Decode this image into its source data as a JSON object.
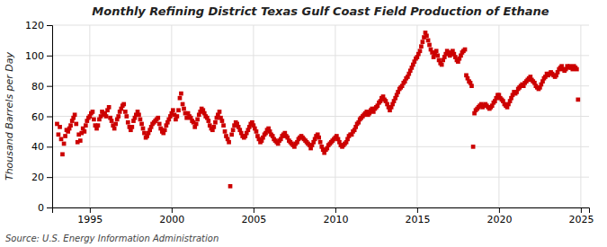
{
  "chart_data": {
    "type": "scatter",
    "title": "Monthly Refining District Texas Gulf Coast Field Production of Ethane",
    "ylabel": "Thousand Barrels per Day",
    "source": "Source: U.S. Energy Information Administration",
    "color": "#cc0000",
    "marker": "square",
    "grid": true,
    "xlim": [
      1992.7,
      2025.5
    ],
    "ylim": [
      0,
      120
    ],
    "xticks": [
      1995,
      2000,
      2005,
      2010,
      2015,
      2020,
      2025
    ],
    "yticks": [
      0,
      20,
      40,
      60,
      80,
      100,
      120
    ],
    "x": [
      1993.0,
      1993.08,
      1993.17,
      1993.25,
      1993.33,
      1993.42,
      1993.5,
      1993.58,
      1993.67,
      1993.75,
      1993.83,
      1993.92,
      1994.0,
      1994.08,
      1994.17,
      1994.25,
      1994.33,
      1994.42,
      1994.5,
      1994.58,
      1994.67,
      1994.75,
      1994.83,
      1994.92,
      1995.0,
      1995.08,
      1995.17,
      1995.25,
      1995.33,
      1995.42,
      1995.5,
      1995.58,
      1995.67,
      1995.75,
      1995.83,
      1995.92,
      1996.0,
      1996.08,
      1996.17,
      1996.25,
      1996.33,
      1996.42,
      1996.5,
      1996.58,
      1996.67,
      1996.75,
      1996.83,
      1996.92,
      1997.0,
      1997.08,
      1997.17,
      1997.25,
      1997.33,
      1997.42,
      1997.5,
      1997.58,
      1997.67,
      1997.75,
      1997.83,
      1997.92,
      1998.0,
      1998.08,
      1998.17,
      1998.25,
      1998.33,
      1998.42,
      1998.5,
      1998.58,
      1998.67,
      1998.75,
      1998.83,
      1998.92,
      1999.0,
      1999.08,
      1999.17,
      1999.25,
      1999.33,
      1999.42,
      1999.5,
      1999.58,
      1999.67,
      1999.75,
      1999.83,
      1999.92,
      2000.0,
      2000.08,
      2000.17,
      2000.25,
      2000.33,
      2000.42,
      2000.5,
      2000.58,
      2000.67,
      2000.75,
      2000.83,
      2000.92,
      2001.0,
      2001.08,
      2001.17,
      2001.25,
      2001.33,
      2001.42,
      2001.5,
      2001.58,
      2001.67,
      2001.75,
      2001.83,
      2001.92,
      2002.0,
      2002.08,
      2002.17,
      2002.25,
      2002.33,
      2002.42,
      2002.5,
      2002.58,
      2002.67,
      2002.75,
      2002.83,
      2002.92,
      2003.0,
      2003.08,
      2003.17,
      2003.25,
      2003.33,
      2003.42,
      2003.5,
      2003.58,
      2003.67,
      2003.75,
      2003.83,
      2003.92,
      2004.0,
      2004.08,
      2004.17,
      2004.25,
      2004.33,
      2004.42,
      2004.5,
      2004.58,
      2004.67,
      2004.75,
      2004.83,
      2004.92,
      2005.0,
      2005.08,
      2005.17,
      2005.25,
      2005.33,
      2005.42,
      2005.5,
      2005.58,
      2005.67,
      2005.75,
      2005.83,
      2005.92,
      2006.0,
      2006.08,
      2006.17,
      2006.25,
      2006.33,
      2006.42,
      2006.5,
      2006.58,
      2006.67,
      2006.75,
      2006.83,
      2006.92,
      2007.0,
      2007.08,
      2007.17,
      2007.25,
      2007.33,
      2007.42,
      2007.5,
      2007.58,
      2007.67,
      2007.75,
      2007.83,
      2007.92,
      2008.0,
      2008.08,
      2008.17,
      2008.25,
      2008.33,
      2008.42,
      2008.5,
      2008.58,
      2008.67,
      2008.75,
      2008.83,
      2008.92,
      2009.0,
      2009.08,
      2009.17,
      2009.25,
      2009.33,
      2009.42,
      2009.5,
      2009.58,
      2009.67,
      2009.75,
      2009.83,
      2009.92,
      2010.0,
      2010.08,
      2010.17,
      2010.25,
      2010.33,
      2010.42,
      2010.5,
      2010.58,
      2010.67,
      2010.75,
      2010.83,
      2010.92,
      2011.0,
      2011.08,
      2011.17,
      2011.25,
      2011.33,
      2011.42,
      2011.5,
      2011.58,
      2011.67,
      2011.75,
      2011.83,
      2011.92,
      2012.0,
      2012.08,
      2012.17,
      2012.25,
      2012.33,
      2012.42,
      2012.5,
      2012.58,
      2012.67,
      2012.75,
      2012.83,
      2012.92,
      2013.0,
      2013.08,
      2013.17,
      2013.25,
      2013.33,
      2013.42,
      2013.5,
      2013.58,
      2013.67,
      2013.75,
      2013.83,
      2013.92,
      2014.0,
      2014.08,
      2014.17,
      2014.25,
      2014.33,
      2014.42,
      2014.5,
      2014.58,
      2014.67,
      2014.75,
      2014.83,
      2014.92,
      2015.0,
      2015.08,
      2015.17,
      2015.25,
      2015.33,
      2015.42,
      2015.5,
      2015.58,
      2015.67,
      2015.75,
      2015.83,
      2015.92,
      2016.0,
      2016.08,
      2016.17,
      2016.25,
      2016.33,
      2016.42,
      2016.5,
      2016.58,
      2016.67,
      2016.75,
      2016.83,
      2016.92,
      2017.0,
      2017.08,
      2017.17,
      2017.25,
      2017.33,
      2017.42,
      2017.5,
      2017.58,
      2017.67,
      2017.75,
      2017.83,
      2017.92,
      2018.0,
      2018.08,
      2018.17,
      2018.25,
      2018.33,
      2018.42,
      2018.5,
      2018.58,
      2018.67,
      2018.75,
      2018.83,
      2018.92,
      2019.0,
      2019.08,
      2019.17,
      2019.25,
      2019.33,
      2019.42,
      2019.5,
      2019.58,
      2019.67,
      2019.75,
      2019.83,
      2019.92,
      2020.0,
      2020.08,
      2020.17,
      2020.25,
      2020.33,
      2020.42,
      2020.5,
      2020.58,
      2020.67,
      2020.75,
      2020.83,
      2020.92,
      2021.0,
      2021.08,
      2021.17,
      2021.25,
      2021.33,
      2021.42,
      2021.5,
      2021.58,
      2021.67,
      2021.75,
      2021.83,
      2021.92,
      2022.0,
      2022.08,
      2022.17,
      2022.25,
      2022.33,
      2022.42,
      2022.5,
      2022.58,
      2022.67,
      2022.75,
      2022.83,
      2022.92,
      2023.0,
      2023.08,
      2023.17,
      2023.25,
      2023.33,
      2023.42,
      2023.5,
      2023.58,
      2023.67,
      2023.75,
      2023.83,
      2023.92,
      2024.0,
      2024.08,
      2024.17,
      2024.25,
      2024.33,
      2024.42,
      2024.5,
      2024.58,
      2024.67,
      2024.75,
      2024.83
    ],
    "values": [
      55,
      48,
      53,
      45,
      35,
      42,
      47,
      51,
      50,
      52,
      54,
      57,
      59,
      61,
      55,
      43,
      48,
      44,
      49,
      52,
      50,
      54,
      57,
      59,
      60,
      62,
      63,
      58,
      54,
      52,
      54,
      58,
      60,
      63,
      61,
      62,
      60,
      64,
      66,
      59,
      57,
      54,
      52,
      55,
      58,
      60,
      63,
      65,
      67,
      68,
      63,
      60,
      56,
      53,
      51,
      53,
      57,
      59,
      61,
      63,
      61,
      58,
      55,
      52,
      49,
      46,
      47,
      49,
      51,
      53,
      55,
      56,
      57,
      58,
      59,
      55,
      52,
      50,
      49,
      51,
      54,
      56,
      58,
      60,
      62,
      64,
      61,
      58,
      60,
      64,
      72,
      75,
      68,
      65,
      62,
      59,
      62,
      60,
      59,
      57,
      56,
      53,
      55,
      58,
      61,
      63,
      65,
      64,
      62,
      60,
      59,
      57,
      54,
      52,
      51,
      53,
      56,
      59,
      61,
      63,
      59,
      57,
      54,
      50,
      47,
      45,
      43,
      14,
      48,
      51,
      54,
      56,
      55,
      53,
      51,
      49,
      47,
      46,
      47,
      49,
      51,
      53,
      55,
      56,
      54,
      52,
      50,
      47,
      45,
      43,
      44,
      46,
      48,
      49,
      51,
      52,
      50,
      48,
      47,
      45,
      44,
      43,
      42,
      44,
      45,
      47,
      48,
      49,
      47,
      46,
      44,
      43,
      42,
      41,
      40,
      42,
      43,
      45,
      46,
      47,
      46,
      45,
      44,
      43,
      42,
      41,
      39,
      41,
      43,
      45,
      47,
      48,
      46,
      43,
      40,
      38,
      36,
      38,
      39,
      41,
      42,
      43,
      44,
      45,
      46,
      47,
      45,
      43,
      41,
      40,
      41,
      42,
      43,
      45,
      47,
      48,
      48,
      50,
      51,
      53,
      55,
      56,
      58,
      59,
      60,
      61,
      62,
      63,
      61,
      62,
      64,
      65,
      63,
      65,
      66,
      67,
      69,
      70,
      72,
      73,
      71,
      70,
      68,
      66,
      64,
      66,
      68,
      70,
      72,
      74,
      76,
      78,
      79,
      80,
      82,
      83,
      85,
      86,
      88,
      90,
      92,
      94,
      96,
      98,
      99,
      101,
      103,
      106,
      109,
      112,
      115,
      113,
      110,
      107,
      104,
      102,
      99,
      101,
      103,
      100,
      97,
      95,
      94,
      97,
      99,
      101,
      103,
      102,
      100,
      101,
      103,
      101,
      99,
      97,
      96,
      98,
      100,
      102,
      103,
      104,
      87,
      85,
      83,
      82,
      80,
      40,
      62,
      64,
      65,
      66,
      67,
      68,
      66,
      67,
      68,
      67,
      66,
      65,
      66,
      67,
      69,
      70,
      72,
      74,
      74,
      72,
      71,
      70,
      68,
      67,
      66,
      68,
      70,
      72,
      74,
      76,
      75,
      76,
      78,
      79,
      80,
      81,
      80,
      82,
      83,
      84,
      85,
      86,
      84,
      83,
      82,
      80,
      79,
      78,
      79,
      81,
      83,
      85,
      86,
      88,
      87,
      88,
      89,
      88,
      87,
      86,
      87,
      89,
      91,
      92,
      93,
      91,
      90,
      91,
      93,
      92,
      93,
      92,
      91,
      93,
      92,
      91,
      71
    ]
  }
}
